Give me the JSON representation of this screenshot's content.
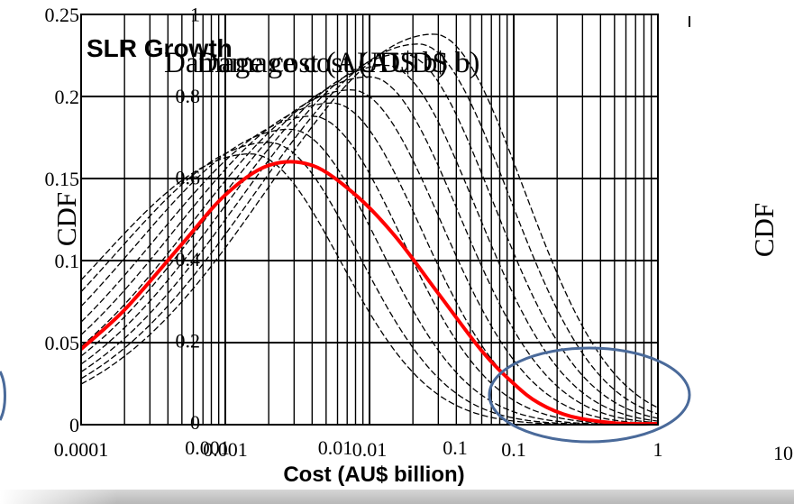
{
  "chart_data": [
    {
      "type": "line",
      "title": "SLR Growth",
      "xlabel": "Cost (AU$ billion)",
      "ylabel": "CDF",
      "x_scale": "log",
      "xlim": [
        0.0001,
        1
      ],
      "ylim": [
        0,
        0.25
      ],
      "x_ticks": [
        "0.0001",
        "0.001",
        "0.01",
        "0.1",
        "1"
      ],
      "y_ticks": [
        "0",
        "0.05",
        "0.1",
        "0.15",
        "0.2",
        "0.25"
      ],
      "grid": true,
      "highlight_color": "#ff0000",
      "ellipse_color": "#4a6a9a",
      "highlighted_series": {
        "x": [
          0.0001,
          0.0002,
          0.0005,
          0.001,
          0.002,
          0.004,
          0.008,
          0.015,
          0.03,
          0.06,
          0.1,
          0.15,
          0.25,
          0.5,
          1
        ],
        "y": [
          0.046,
          0.07,
          0.11,
          0.14,
          0.158,
          0.158,
          0.14,
          0.115,
          0.08,
          0.045,
          0.025,
          0.013,
          0.005,
          0.001,
          0.0005
        ]
      },
      "background_series": [
        {
          "peak_x": 0.0015,
          "peak_y": 0.165
        },
        {
          "peak_x": 0.002,
          "peak_y": 0.172
        },
        {
          "peak_x": 0.0028,
          "peak_y": 0.18
        },
        {
          "peak_x": 0.004,
          "peak_y": 0.188
        },
        {
          "peak_x": 0.0055,
          "peak_y": 0.196
        },
        {
          "peak_x": 0.0075,
          "peak_y": 0.204
        },
        {
          "peak_x": 0.01,
          "peak_y": 0.212
        },
        {
          "peak_x": 0.013,
          "peak_y": 0.219
        },
        {
          "peak_x": 0.017,
          "peak_y": 0.226
        },
        {
          "peak_x": 0.022,
          "peak_y": 0.232
        },
        {
          "peak_x": 0.028,
          "peak_y": 0.238
        }
      ]
    },
    {
      "type": "line",
      "title": "Damage cost (AUD$ b)",
      "ylabel": "CDF",
      "x_ticks": [
        "0.001",
        "0.01",
        "0.1",
        "10"
      ],
      "y_ticks": [
        "0",
        "0.2",
        "0.4",
        "0.6",
        "0.8",
        "1"
      ]
    }
  ],
  "overlay_text": {
    "title_ghost": "Damage cost (AUD$ b)",
    "cdf_left": "CDF",
    "cdf_right": "CDF",
    "x_tick_far_right": "10"
  }
}
